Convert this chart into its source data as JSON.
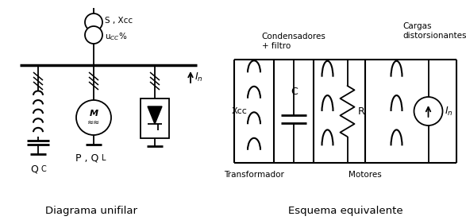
{
  "fig_width": 5.87,
  "fig_height": 2.82,
  "dpi": 100,
  "bg_color": "#ffffff",
  "line_color": "#000000",
  "line_width": 1.3,
  "title_left": "Diagrama unifilar",
  "title_right": "Esquema equivalente",
  "label_Qc": "Q",
  "label_Qc_sub": "C",
  "label_PQL": "P , Q",
  "label_PQL_sub": "L",
  "label_S_Xcc": "S , Xcc",
  "label_ucc": "u",
  "label_condensadores": "Condensadores\n+ filtro",
  "label_cargas": "Cargas\ndistorsionantes",
  "label_transformador": "Transformador",
  "label_motores": "Motores",
  "label_Xcc": "Xcc",
  "label_C": "C",
  "label_R": "R"
}
